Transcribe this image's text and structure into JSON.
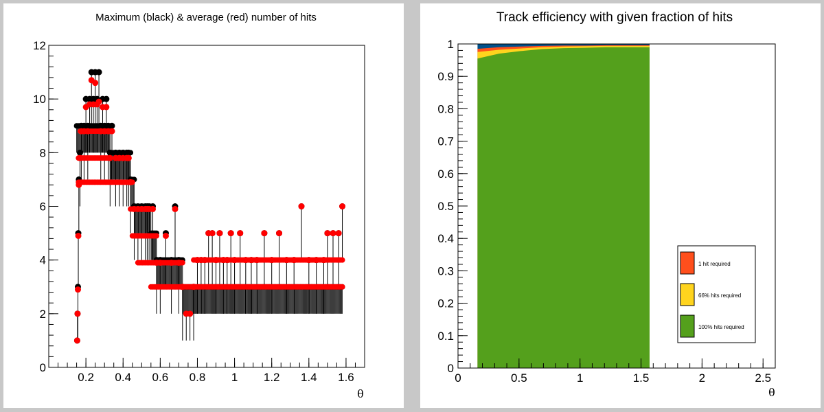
{
  "chart_data": [
    {
      "type": "scatter",
      "title": "Maximum (black) & average (red) number of hits",
      "xlabel": "θ",
      "ylabel": "",
      "xlim": [
        0.0,
        1.7
      ],
      "ylim": [
        0,
        12
      ],
      "grid": false,
      "xticks": [
        "0.2",
        "0.4",
        "0.6",
        "0.8",
        "1",
        "1.2",
        "1.4",
        "1.6"
      ],
      "yticks": [
        "0",
        "2",
        "4",
        "6",
        "8",
        "10",
        "12"
      ],
      "series": [
        {
          "name": "",
          "color": "#000000",
          "description_role": "maximum",
          "points": [
            [
              0.153,
              1
            ],
            [
              0.155,
              2
            ],
            [
              0.157,
              3
            ],
            [
              0.159,
              5
            ],
            [
              0.162,
              7
            ],
            [
              0.168,
              8
            ],
            [
              0.175,
              9
            ],
            [
              0.19,
              9
            ],
            [
              0.2,
              10
            ],
            [
              0.21,
              9
            ],
            [
              0.22,
              10
            ],
            [
              0.23,
              11
            ],
            [
              0.24,
              10
            ],
            [
              0.25,
              11
            ],
            [
              0.26,
              10
            ],
            [
              0.27,
              11
            ],
            [
              0.28,
              9
            ],
            [
              0.29,
              10
            ],
            [
              0.3,
              9
            ],
            [
              0.31,
              10
            ],
            [
              0.32,
              9
            ],
            [
              0.33,
              8
            ],
            [
              0.34,
              9
            ],
            [
              0.36,
              8
            ],
            [
              0.38,
              8
            ],
            [
              0.4,
              8
            ],
            [
              0.42,
              8
            ],
            [
              0.43,
              8
            ],
            [
              0.44,
              7
            ],
            [
              0.46,
              6
            ],
            [
              0.48,
              6
            ],
            [
              0.5,
              6
            ],
            [
              0.52,
              6
            ],
            [
              0.53,
              6
            ],
            [
              0.54,
              6
            ],
            [
              0.56,
              6
            ],
            [
              0.58,
              4
            ],
            [
              0.6,
              4
            ],
            [
              0.63,
              5
            ],
            [
              0.66,
              4
            ],
            [
              0.68,
              6
            ],
            [
              0.7,
              4
            ],
            [
              0.72,
              3
            ],
            [
              0.74,
              2
            ],
            [
              0.76,
              2
            ],
            [
              0.78,
              3
            ],
            [
              0.8,
              4
            ],
            [
              0.82,
              4
            ],
            [
              0.84,
              4
            ],
            [
              0.86,
              5
            ],
            [
              0.88,
              5
            ],
            [
              0.9,
              4
            ],
            [
              0.92,
              5
            ],
            [
              0.94,
              4
            ],
            [
              0.96,
              4
            ],
            [
              0.98,
              5
            ],
            [
              1.0,
              4
            ],
            [
              1.03,
              5
            ],
            [
              1.06,
              4
            ],
            [
              1.09,
              4
            ],
            [
              1.12,
              4
            ],
            [
              1.16,
              5
            ],
            [
              1.2,
              4
            ],
            [
              1.24,
              5
            ],
            [
              1.28,
              4
            ],
            [
              1.32,
              4
            ],
            [
              1.36,
              6
            ],
            [
              1.4,
              4
            ],
            [
              1.44,
              4
            ],
            [
              1.48,
              4
            ],
            [
              1.5,
              5
            ],
            [
              1.53,
              5
            ],
            [
              1.56,
              5
            ],
            [
              1.58,
              6
            ]
          ]
        },
        {
          "name": "",
          "color": "#ff0000",
          "description_role": "average",
          "points": [
            [
              0.153,
              1
            ],
            [
              0.155,
              2
            ],
            [
              0.157,
              2.9
            ],
            [
              0.159,
              4.9
            ],
            [
              0.162,
              6.8
            ],
            [
              0.168,
              7.8
            ],
            [
              0.175,
              8.8
            ],
            [
              0.19,
              8.8
            ],
            [
              0.2,
              9.7
            ],
            [
              0.21,
              8.8
            ],
            [
              0.22,
              9.8
            ],
            [
              0.23,
              10.7
            ],
            [
              0.24,
              9.8
            ],
            [
              0.25,
              10.6
            ],
            [
              0.26,
              9.8
            ],
            [
              0.27,
              9.9
            ],
            [
              0.28,
              8.8
            ],
            [
              0.29,
              9.7
            ],
            [
              0.3,
              8.8
            ],
            [
              0.31,
              9.7
            ],
            [
              0.32,
              8.8
            ],
            [
              0.33,
              7.8
            ],
            [
              0.34,
              8.8
            ],
            [
              0.36,
              7.8
            ],
            [
              0.38,
              7.8
            ],
            [
              0.4,
              7.8
            ],
            [
              0.42,
              7.8
            ],
            [
              0.43,
              7.8
            ],
            [
              0.44,
              6.9
            ],
            [
              0.46,
              5.9
            ],
            [
              0.48,
              5.9
            ],
            [
              0.5,
              5.9
            ],
            [
              0.52,
              5.9
            ],
            [
              0.53,
              5.9
            ],
            [
              0.54,
              5.9
            ],
            [
              0.56,
              5.9
            ],
            [
              0.58,
              3.9
            ],
            [
              0.6,
              3.9
            ],
            [
              0.63,
              4.9
            ],
            [
              0.66,
              3.9
            ],
            [
              0.68,
              5.9
            ],
            [
              0.7,
              3.9
            ],
            [
              0.72,
              3
            ],
            [
              0.74,
              2
            ],
            [
              0.76,
              2
            ],
            [
              0.78,
              3
            ],
            [
              0.8,
              4
            ],
            [
              0.82,
              4
            ],
            [
              0.84,
              4
            ],
            [
              0.86,
              5
            ],
            [
              0.88,
              5
            ],
            [
              0.9,
              4
            ],
            [
              0.92,
              5
            ],
            [
              0.94,
              4
            ],
            [
              0.96,
              4
            ],
            [
              0.98,
              5
            ],
            [
              1.0,
              4
            ],
            [
              1.03,
              5
            ],
            [
              1.06,
              4
            ],
            [
              1.09,
              4
            ],
            [
              1.12,
              4
            ],
            [
              1.16,
              5
            ],
            [
              1.2,
              4
            ],
            [
              1.24,
              5
            ],
            [
              1.28,
              4
            ],
            [
              1.32,
              4
            ],
            [
              1.36,
              6
            ],
            [
              1.4,
              4
            ],
            [
              1.44,
              4
            ],
            [
              1.48,
              4
            ],
            [
              1.5,
              5
            ],
            [
              1.53,
              5
            ],
            [
              1.56,
              5
            ],
            [
              1.58,
              6
            ]
          ]
        }
      ],
      "levels_max": [
        [
          0.15,
          0.33,
          9
        ],
        [
          0.33,
          0.44,
          8
        ],
        [
          0.44,
          0.46,
          7
        ],
        [
          0.46,
          0.55,
          6
        ],
        [
          0.55,
          0.58,
          5
        ],
        [
          0.58,
          0.72,
          4
        ],
        [
          0.72,
          1.58,
          3
        ]
      ],
      "levels_avg": [
        [
          0.16,
          0.33,
          6.9
        ],
        [
          0.16,
          0.33,
          7.8
        ],
        [
          0.17,
          0.33,
          8.8
        ],
        [
          0.33,
          0.45,
          6.9
        ],
        [
          0.44,
          0.56,
          5.9
        ],
        [
          0.45,
          0.58,
          4.9
        ],
        [
          0.48,
          0.72,
          3.9
        ],
        [
          0.55,
          1.58,
          3
        ],
        [
          0.78,
          1.58,
          4
        ]
      ]
    },
    {
      "type": "area",
      "title": "Track efficiency with given fraction of hits",
      "xlabel": "θ",
      "ylabel": "",
      "xlim": [
        0,
        2.6
      ],
      "ylim": [
        0,
        1
      ],
      "grid": false,
      "xticks": [
        "0",
        "0.5",
        "1",
        "1.5",
        "2",
        "2.5"
      ],
      "yticks": [
        "0",
        "0.1",
        "0.2",
        "0.3",
        "0.4",
        "0.5",
        "0.6",
        "0.7",
        "0.8",
        "0.9",
        "1"
      ],
      "x_range_filled": [
        0.16,
        1.57
      ],
      "series": [
        {
          "name": "1 hit required",
          "color": "#ff4f1c",
          "values": [
            0.985,
            0.99,
            0.992,
            0.994,
            0.995,
            0.995,
            0.996,
            0.996,
            0.996
          ]
        },
        {
          "name": "66% hits required",
          "color": "#ffd41e",
          "values": [
            0.975,
            0.982,
            0.986,
            0.99,
            0.992,
            0.993,
            0.994,
            0.994,
            0.994
          ]
        },
        {
          "name": "100% hits required",
          "color": "#54a01c",
          "values": [
            0.955,
            0.97,
            0.978,
            0.984,
            0.987,
            0.988,
            0.99,
            0.99,
            0.99
          ]
        }
      ],
      "background_color": "#00508a",
      "legend_placement": "bottom-right"
    }
  ]
}
